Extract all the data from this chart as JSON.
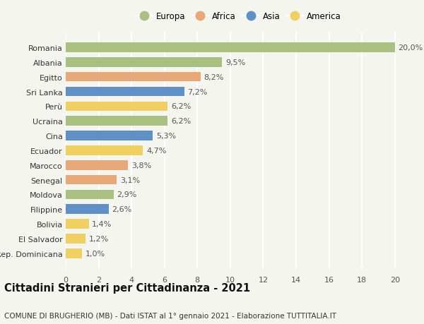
{
  "countries": [
    "Romania",
    "Albania",
    "Egitto",
    "Sri Lanka",
    "Perù",
    "Ucraina",
    "Cina",
    "Ecuador",
    "Marocco",
    "Senegal",
    "Moldova",
    "Filippine",
    "Bolivia",
    "El Salvador",
    "Rep. Dominicana"
  ],
  "values": [
    20.0,
    9.5,
    8.2,
    7.2,
    6.2,
    6.2,
    5.3,
    4.7,
    3.8,
    3.1,
    2.9,
    2.6,
    1.4,
    1.2,
    1.0
  ],
  "labels": [
    "20,0%",
    "9,5%",
    "8,2%",
    "7,2%",
    "6,2%",
    "6,2%",
    "5,3%",
    "4,7%",
    "3,8%",
    "3,1%",
    "2,9%",
    "2,6%",
    "1,4%",
    "1,2%",
    "1,0%"
  ],
  "continents": [
    "Europa",
    "Europa",
    "Africa",
    "Asia",
    "America",
    "Europa",
    "Asia",
    "America",
    "Africa",
    "Africa",
    "Europa",
    "Asia",
    "America",
    "America",
    "America"
  ],
  "colors": {
    "Europa": "#a8c080",
    "Africa": "#e8a878",
    "Asia": "#6090c8",
    "America": "#f0d060"
  },
  "legend_order": [
    "Europa",
    "Africa",
    "Asia",
    "America"
  ],
  "xlim": [
    0,
    21
  ],
  "xticks": [
    0,
    2,
    4,
    6,
    8,
    10,
    12,
    14,
    16,
    18,
    20
  ],
  "title": "Cittadini Stranieri per Cittadinanza - 2021",
  "subtitle": "COMUNE DI BRUGHERIO (MB) - Dati ISTAT al 1° gennaio 2021 - Elaborazione TUTTITALIA.IT",
  "background_color": "#f5f5f0",
  "grid_color": "#ffffff",
  "bar_height": 0.65,
  "label_fontsize": 8.0,
  "tick_fontsize": 8.0,
  "title_fontsize": 10.5,
  "subtitle_fontsize": 7.5,
  "legend_fontsize": 8.5
}
